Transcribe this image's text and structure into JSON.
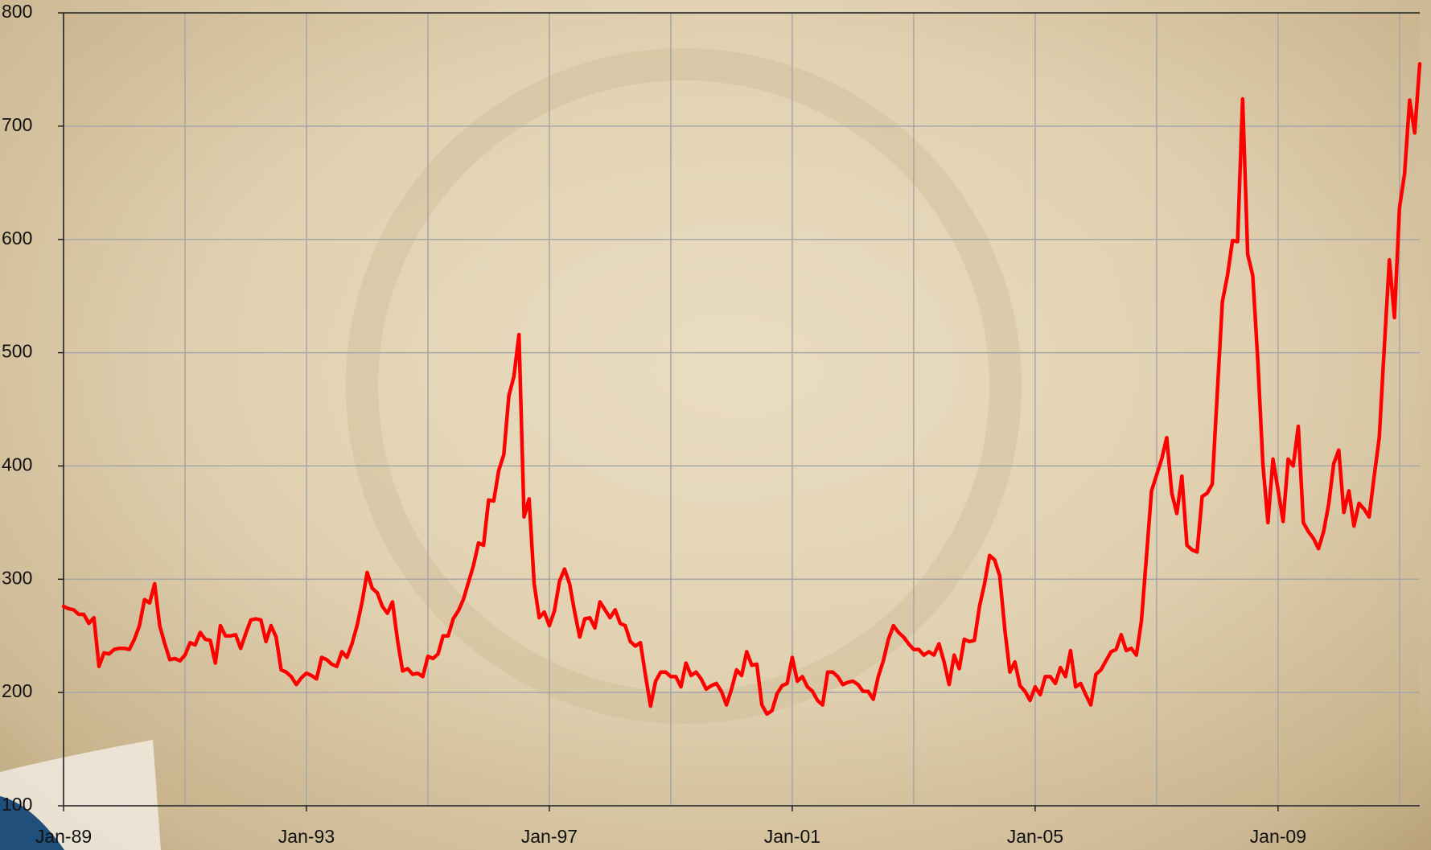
{
  "chart_data": {
    "type": "line",
    "categories": [
      "Jan-89",
      null,
      null,
      null,
      null,
      null,
      null,
      null,
      null,
      null,
      null,
      null,
      null,
      null,
      null,
      null,
      null,
      null,
      null,
      null,
      null,
      null,
      null,
      null,
      null,
      null,
      null,
      null,
      null,
      null,
      null,
      null,
      null,
      null,
      null,
      null,
      null,
      null,
      null,
      null,
      null,
      null,
      null,
      null,
      null,
      null,
      null,
      null,
      "Jan-93",
      null,
      null,
      null,
      null,
      null,
      null,
      null,
      null,
      null,
      null,
      null,
      null,
      null,
      null,
      null,
      null,
      null,
      null,
      null,
      null,
      null,
      null,
      null,
      null,
      null,
      null,
      null,
      null,
      null,
      null,
      null,
      null,
      null,
      null,
      null,
      null,
      null,
      null,
      null,
      null,
      null,
      null,
      null,
      null,
      null,
      null,
      null,
      "Jan-97",
      null,
      null,
      null,
      null,
      null,
      null,
      null,
      null,
      null,
      null,
      null,
      null,
      null,
      null,
      null,
      null,
      null,
      null,
      null,
      null,
      null,
      null,
      null,
      null,
      null,
      null,
      null,
      null,
      null,
      null,
      null,
      null,
      null,
      null,
      null,
      null,
      null,
      null,
      null,
      null,
      null,
      null,
      null,
      null,
      null,
      null,
      null,
      "Jan-01",
      null,
      null,
      null,
      null,
      null,
      null,
      null,
      null,
      null,
      null,
      null,
      null,
      null,
      null,
      null,
      null,
      null,
      null,
      null,
      null,
      null,
      null,
      null,
      null,
      null,
      null,
      null,
      null,
      null,
      null,
      null,
      null,
      null,
      null,
      null,
      null,
      null,
      null,
      null,
      null,
      null,
      null,
      null,
      null,
      null,
      null,
      null,
      "Jan-05",
      null,
      null,
      null,
      null,
      null,
      null,
      null,
      null,
      null,
      null,
      null,
      null,
      null,
      null,
      null,
      null,
      null,
      null,
      null,
      null,
      null,
      null,
      null,
      null,
      null,
      null,
      null,
      null,
      null,
      null,
      null,
      null,
      null,
      null,
      null,
      null,
      null,
      null,
      null,
      null,
      null,
      null,
      null,
      null,
      null,
      null,
      null,
      "Jan-09",
      null,
      null,
      null,
      null,
      null,
      null,
      null,
      null,
      null,
      null,
      null,
      null,
      null,
      null,
      null,
      null,
      null,
      null,
      null,
      null,
      null,
      null,
      null,
      null,
      null,
      null,
      null,
      null
    ],
    "values": [
      276,
      274,
      273,
      269,
      269,
      261,
      266,
      223,
      235,
      234,
      238,
      239,
      239,
      238,
      247,
      259,
      282,
      279,
      296,
      259,
      243,
      229,
      230,
      228,
      233,
      244,
      242,
      253,
      247,
      246,
      226,
      259,
      250,
      250,
      251,
      239,
      252,
      264,
      265,
      264,
      245,
      259,
      249,
      220,
      218,
      214,
      207,
      213,
      217,
      215,
      212,
      231,
      229,
      225,
      223,
      236,
      231,
      243,
      259,
      280,
      306,
      292,
      288,
      276,
      270,
      280,
      246,
      219,
      221,
      216,
      217,
      214,
      232,
      230,
      234,
      250,
      250,
      265,
      272,
      282,
      297,
      312,
      332,
      330,
      370,
      369,
      396,
      410,
      462,
      479,
      516,
      355,
      371,
      296,
      266,
      271,
      259,
      272,
      298,
      309,
      296,
      271,
      249,
      265,
      266,
      257,
      280,
      273,
      266,
      273,
      261,
      259,
      245,
      241,
      244,
      215,
      188,
      210,
      218,
      218,
      214,
      214,
      205,
      226,
      215,
      218,
      212,
      203,
      206,
      208,
      201,
      189,
      203,
      220,
      215,
      236,
      224,
      225,
      189,
      181,
      184,
      199,
      206,
      208,
      231,
      210,
      214,
      205,
      201,
      193,
      189,
      218,
      218,
      214,
      207,
      209,
      210,
      207,
      201,
      201,
      194,
      214,
      228,
      247,
      259,
      253,
      249,
      243,
      238,
      238,
      233,
      236,
      233,
      243,
      227,
      207,
      233,
      221,
      247,
      245,
      246,
      276,
      296,
      321,
      317,
      303,
      256,
      218,
      227,
      206,
      201,
      193,
      205,
      198,
      214,
      214,
      208,
      222,
      214,
      237,
      205,
      208,
      198,
      189,
      216,
      220,
      228,
      236,
      238,
      251,
      237,
      239,
      233,
      263,
      320,
      378,
      392,
      406,
      425,
      376,
      358,
      391,
      330,
      326,
      324,
      373,
      376,
      384,
      465,
      545,
      568,
      599,
      598,
      724,
      587,
      568,
      493,
      402,
      350,
      406,
      379,
      351,
      406,
      400,
      435,
      350,
      342,
      336,
      327,
      342,
      366,
      402,
      414,
      359,
      378,
      347,
      367,
      362,
      355,
      391,
      425,
      505,
      582,
      531,
      628,
      658,
      723,
      694,
      755
    ],
    "color": "#ff0000",
    "ylim": [
      100,
      800
    ],
    "yticks": [
      100,
      200,
      300,
      400,
      500,
      600,
      700,
      800
    ],
    "grid": true
  }
}
